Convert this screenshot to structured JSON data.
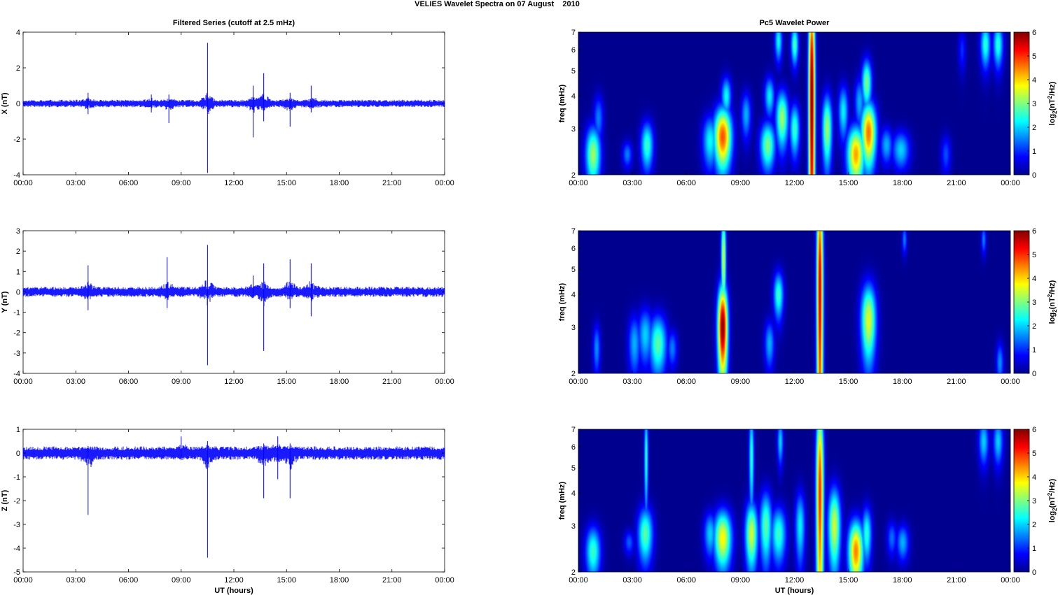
{
  "figure_title": "VELIES Wavelet Spectra on 07 August    2010",
  "colors": {
    "trace": "#0000ff",
    "background": "#00008f",
    "colormap": [
      "#00008f",
      "#0000ff",
      "#0080ff",
      "#00ffff",
      "#80ff80",
      "#ffff00",
      "#ff8000",
      "#ff0000",
      "#800000"
    ]
  },
  "chart_data": [
    {
      "type": "line",
      "panel": "X",
      "title": "Filtered Series (cutoff at 2.5 mHz)",
      "xlabel": "",
      "ylabel": "X (nT)",
      "xlim": [
        "00:00",
        "24:00"
      ],
      "ylim": [
        -4,
        4
      ],
      "x_ticks": [
        "00:00",
        "03:00",
        "06:00",
        "09:00",
        "12:00",
        "15:00",
        "18:00",
        "21:00",
        "00:00"
      ],
      "y_ticks": [
        "4",
        "2",
        "0",
        "-2",
        "-4"
      ],
      "noise_amplitude_nT": 0.15,
      "spikes": [
        {
          "t_hours": 3.7,
          "min": -0.6,
          "max": 0.6
        },
        {
          "t_hours": 7.3,
          "min": -0.5,
          "max": 0.5
        },
        {
          "t_hours": 8.3,
          "min": -1.1,
          "max": 0.5
        },
        {
          "t_hours": 10.5,
          "min": -3.9,
          "max": 3.4
        },
        {
          "t_hours": 13.1,
          "min": -1.9,
          "max": 1.0
        },
        {
          "t_hours": 13.7,
          "min": -1.0,
          "max": 1.7
        },
        {
          "t_hours": 15.2,
          "min": -1.3,
          "max": 0.6
        },
        {
          "t_hours": 16.4,
          "min": -0.5,
          "max": 1.0
        }
      ]
    },
    {
      "type": "line",
      "panel": "Y",
      "title": "",
      "xlabel": "",
      "ylabel": "Y (nT)",
      "xlim": [
        "00:00",
        "24:00"
      ],
      "ylim": [
        -4,
        3
      ],
      "x_ticks": [
        "00:00",
        "03:00",
        "06:00",
        "09:00",
        "12:00",
        "15:00",
        "18:00",
        "21:00",
        "00:00"
      ],
      "y_ticks": [
        "3",
        "2",
        "1",
        "0",
        "-1",
        "-2",
        "-3",
        "-4"
      ],
      "noise_amplitude_nT": 0.18,
      "spikes": [
        {
          "t_hours": 3.7,
          "min": -0.9,
          "max": 1.3
        },
        {
          "t_hours": 8.2,
          "min": -0.8,
          "max": 1.7
        },
        {
          "t_hours": 10.5,
          "min": -3.6,
          "max": 2.3
        },
        {
          "t_hours": 13.1,
          "min": -0.3,
          "max": 0.8
        },
        {
          "t_hours": 13.7,
          "min": -2.9,
          "max": 1.4
        },
        {
          "t_hours": 15.2,
          "min": -0.8,
          "max": 1.6
        },
        {
          "t_hours": 16.4,
          "min": -1.2,
          "max": 1.4
        }
      ]
    },
    {
      "type": "line",
      "panel": "Z",
      "title": "",
      "xlabel": "UT (hours)",
      "ylabel": "Z (nT)",
      "xlim": [
        "00:00",
        "24:00"
      ],
      "ylim": [
        -5,
        1
      ],
      "x_ticks": [
        "00:00",
        "03:00",
        "06:00",
        "09:00",
        "12:00",
        "15:00",
        "18:00",
        "21:00",
        "00:00"
      ],
      "y_ticks": [
        "1",
        "0",
        "-1",
        "-2",
        "-3",
        "-4",
        "-5"
      ],
      "noise_amplitude_nT": 0.2,
      "spikes": [
        {
          "t_hours": 3.7,
          "min": -2.6,
          "max": 0.3
        },
        {
          "t_hours": 9.0,
          "min": -0.3,
          "max": 0.7
        },
        {
          "t_hours": 10.5,
          "min": -4.4,
          "max": 0.5
        },
        {
          "t_hours": 13.7,
          "min": -1.9,
          "max": 0.4
        },
        {
          "t_hours": 14.5,
          "min": -1.1,
          "max": 0.7
        },
        {
          "t_hours": 15.2,
          "min": -1.9,
          "max": 0.4
        }
      ]
    },
    {
      "type": "heatmap",
      "panel": "X",
      "title": "Pc5 Wavelet Power",
      "xlabel": "",
      "ylabel": "freq (mHz)",
      "colorbar_label": "log2(nT2/Hz)",
      "xlim": [
        "00:00",
        "24:00"
      ],
      "ylim_mHz": [
        2,
        7
      ],
      "yscale": "log",
      "clim": [
        0,
        6
      ],
      "x_ticks": [
        "00:00",
        "03:00",
        "06:00",
        "09:00",
        "12:00",
        "15:00",
        "18:00",
        "21:00",
        "00:00"
      ],
      "y_ticks": [
        "7",
        "6",
        "5",
        "4",
        "3",
        "2"
      ],
      "colorbar_ticks": [
        "6",
        "5",
        "4",
        "3",
        "2",
        "1",
        "0"
      ],
      "blobs": [
        {
          "t": 0.8,
          "f": 2.4,
          "p": 3.2,
          "tw": 0.3,
          "fh": 0.45
        },
        {
          "t": 1.1,
          "f": 3.3,
          "p": 1.5,
          "tw": 0.2,
          "fh": 0.5
        },
        {
          "t": 2.7,
          "f": 2.4,
          "p": 1.5,
          "tw": 0.2,
          "fh": 0.2
        },
        {
          "t": 3.8,
          "f": 2.6,
          "p": 2.6,
          "tw": 0.25,
          "fh": 0.4
        },
        {
          "t": 7.3,
          "f": 2.7,
          "p": 2.3,
          "tw": 0.3,
          "fh": 0.45
        },
        {
          "t": 8.0,
          "f": 2.8,
          "p": 4.8,
          "tw": 0.35,
          "fh": 0.55
        },
        {
          "t": 8.2,
          "f": 4.0,
          "p": 2.3,
          "tw": 0.2,
          "fh": 0.5
        },
        {
          "t": 9.3,
          "f": 3.4,
          "p": 1.8,
          "tw": 0.2,
          "fh": 0.5
        },
        {
          "t": 10.5,
          "f": 2.6,
          "p": 3.0,
          "tw": 0.3,
          "fh": 0.4
        },
        {
          "t": 10.6,
          "f": 4.0,
          "p": 2.2,
          "tw": 0.2,
          "fh": 0.5
        },
        {
          "t": 11.1,
          "f": 6.5,
          "p": 2.3,
          "tw": 0.15,
          "fh": 0.8
        },
        {
          "t": 11.3,
          "f": 3.3,
          "p": 3.2,
          "tw": 0.25,
          "fh": 0.6
        },
        {
          "t": 12.0,
          "f": 6.3,
          "p": 2.7,
          "tw": 0.15,
          "fh": 0.8
        },
        {
          "t": 12.0,
          "f": 3.0,
          "p": 2.6,
          "tw": 0.2,
          "fh": 0.5
        },
        {
          "t": 12.95,
          "f": 4.0,
          "p": 6.0,
          "tw": 0.13,
          "fh": 4.0
        },
        {
          "t": 13.8,
          "f": 3.0,
          "p": 3.2,
          "tw": 0.2,
          "fh": 0.7
        },
        {
          "t": 14.7,
          "f": 3.5,
          "p": 2.2,
          "tw": 0.2,
          "fh": 0.6
        },
        {
          "t": 15.4,
          "f": 2.4,
          "p": 4.3,
          "tw": 0.35,
          "fh": 0.45
        },
        {
          "t": 15.6,
          "f": 3.8,
          "p": 1.8,
          "tw": 0.2,
          "fh": 0.6
        },
        {
          "t": 16.1,
          "f": 2.9,
          "p": 4.6,
          "tw": 0.3,
          "fh": 0.6
        },
        {
          "t": 16.0,
          "f": 4.5,
          "p": 3.0,
          "tw": 0.2,
          "fh": 0.7
        },
        {
          "t": 17.1,
          "f": 2.6,
          "p": 1.8,
          "tw": 0.25,
          "fh": 0.3
        },
        {
          "t": 17.9,
          "f": 2.5,
          "p": 2.0,
          "tw": 0.35,
          "fh": 0.3
        },
        {
          "t": 20.4,
          "f": 2.4,
          "p": 1.2,
          "tw": 0.2,
          "fh": 0.3
        },
        {
          "t": 21.3,
          "f": 6.0,
          "p": 1.0,
          "tw": 0.15,
          "fh": 0.8
        },
        {
          "t": 22.6,
          "f": 6.3,
          "p": 2.5,
          "tw": 0.2,
          "fh": 0.9
        },
        {
          "t": 23.3,
          "f": 6.3,
          "p": 2.5,
          "tw": 0.2,
          "fh": 0.9
        }
      ]
    },
    {
      "type": "heatmap",
      "panel": "Y",
      "title": "",
      "xlabel": "",
      "ylabel": "freq (mHz)",
      "colorbar_label": "log2(nT2/Hz)",
      "xlim": [
        "00:00",
        "24:00"
      ],
      "ylim_mHz": [
        2,
        7
      ],
      "yscale": "log",
      "clim": [
        0,
        6
      ],
      "x_ticks": [
        "00:00",
        "03:00",
        "06:00",
        "09:00",
        "12:00",
        "15:00",
        "18:00",
        "21:00",
        "00:00"
      ],
      "y_ticks": [
        "7",
        "6",
        "5",
        "4",
        "3",
        "2"
      ],
      "colorbar_ticks": [
        "6",
        "5",
        "4",
        "3",
        "2",
        "1",
        "0"
      ],
      "blobs": [
        {
          "t": 1.0,
          "f": 2.5,
          "p": 1.6,
          "tw": 0.15,
          "fh": 0.4
        },
        {
          "t": 3.1,
          "f": 2.6,
          "p": 1.8,
          "tw": 0.25,
          "fh": 0.5
        },
        {
          "t": 3.7,
          "f": 2.8,
          "p": 2.0,
          "tw": 0.3,
          "fh": 0.5
        },
        {
          "t": 4.4,
          "f": 2.6,
          "p": 2.8,
          "tw": 0.35,
          "fh": 0.5
        },
        {
          "t": 5.2,
          "f": 2.5,
          "p": 1.5,
          "tw": 0.2,
          "fh": 0.3
        },
        {
          "t": 8.0,
          "f": 3.0,
          "p": 6.0,
          "tw": 0.2,
          "fh": 0.9
        },
        {
          "t": 8.05,
          "f": 5.5,
          "p": 3.5,
          "tw": 0.1,
          "fh": 1.8
        },
        {
          "t": 10.6,
          "f": 2.6,
          "p": 1.8,
          "tw": 0.2,
          "fh": 0.4
        },
        {
          "t": 11.1,
          "f": 4.0,
          "p": 2.6,
          "tw": 0.2,
          "fh": 0.6
        },
        {
          "t": 13.4,
          "f": 4.2,
          "p": 5.5,
          "tw": 0.13,
          "fh": 4.0
        },
        {
          "t": 16.1,
          "f": 3.2,
          "p": 3.6,
          "tw": 0.3,
          "fh": 0.8
        },
        {
          "t": 18.1,
          "f": 6.5,
          "p": 1.5,
          "tw": 0.1,
          "fh": 0.6
        },
        {
          "t": 22.5,
          "f": 6.5,
          "p": 1.5,
          "tw": 0.1,
          "fh": 0.6
        },
        {
          "t": 23.4,
          "f": 2.2,
          "p": 1.6,
          "tw": 0.15,
          "fh": 0.3
        }
      ]
    },
    {
      "type": "heatmap",
      "panel": "Z",
      "title": "",
      "xlabel": "UT (hours)",
      "ylabel": "freq (mHz)",
      "colorbar_label": "log2(nT2/Hz)",
      "xlim": [
        "00:00",
        "24:00"
      ],
      "ylim_mHz": [
        2,
        7
      ],
      "yscale": "log",
      "clim": [
        0,
        6
      ],
      "x_ticks": [
        "00:00",
        "03:00",
        "06:00",
        "09:00",
        "12:00",
        "15:00",
        "18:00",
        "21:00",
        "00:00"
      ],
      "y_ticks": [
        "7",
        "6",
        "5",
        "4",
        "3",
        "2"
      ],
      "colorbar_ticks": [
        "6",
        "5",
        "4",
        "3",
        "2",
        "1",
        "0"
      ],
      "blobs": [
        {
          "t": 0.8,
          "f": 2.4,
          "p": 2.6,
          "tw": 0.3,
          "fh": 0.4
        },
        {
          "t": 2.8,
          "f": 2.6,
          "p": 1.3,
          "tw": 0.2,
          "fh": 0.2
        },
        {
          "t": 3.7,
          "f": 2.8,
          "p": 2.8,
          "tw": 0.3,
          "fh": 0.5
        },
        {
          "t": 3.75,
          "f": 5.5,
          "p": 2.5,
          "tw": 0.08,
          "fh": 1.8
        },
        {
          "t": 7.3,
          "f": 2.8,
          "p": 2.0,
          "tw": 0.25,
          "fh": 0.4
        },
        {
          "t": 8.0,
          "f": 2.7,
          "p": 3.8,
          "tw": 0.35,
          "fh": 0.5
        },
        {
          "t": 9.6,
          "f": 2.8,
          "p": 3.5,
          "tw": 0.25,
          "fh": 0.6
        },
        {
          "t": 9.6,
          "f": 5.5,
          "p": 2.5,
          "tw": 0.1,
          "fh": 1.8
        },
        {
          "t": 10.4,
          "f": 3.0,
          "p": 2.8,
          "tw": 0.25,
          "fh": 0.7
        },
        {
          "t": 11.1,
          "f": 2.8,
          "p": 2.6,
          "tw": 0.3,
          "fh": 0.5
        },
        {
          "t": 11.2,
          "f": 6.3,
          "p": 2.0,
          "tw": 0.12,
          "fh": 0.9
        },
        {
          "t": 12.3,
          "f": 3.0,
          "p": 2.2,
          "tw": 0.2,
          "fh": 0.7
        },
        {
          "t": 13.4,
          "f": 4.0,
          "p": 5.0,
          "tw": 0.15,
          "fh": 3.0
        },
        {
          "t": 14.2,
          "f": 3.0,
          "p": 3.5,
          "tw": 0.25,
          "fh": 0.8
        },
        {
          "t": 15.4,
          "f": 2.4,
          "p": 4.5,
          "tw": 0.3,
          "fh": 0.5
        },
        {
          "t": 16.0,
          "f": 2.8,
          "p": 2.5,
          "tw": 0.2,
          "fh": 0.5
        },
        {
          "t": 17.4,
          "f": 2.7,
          "p": 1.4,
          "tw": 0.2,
          "fh": 0.3
        },
        {
          "t": 18.0,
          "f": 2.6,
          "p": 1.8,
          "tw": 0.25,
          "fh": 0.3
        },
        {
          "t": 22.5,
          "f": 6.3,
          "p": 2.0,
          "tw": 0.2,
          "fh": 0.9
        },
        {
          "t": 23.3,
          "f": 6.3,
          "p": 2.0,
          "tw": 0.2,
          "fh": 0.9
        }
      ]
    }
  ]
}
